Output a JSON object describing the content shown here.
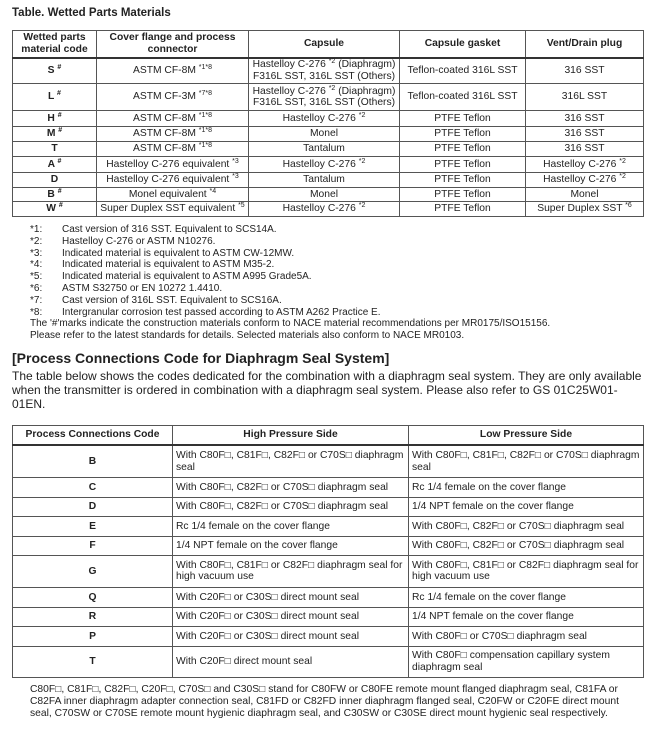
{
  "title": "Table. Wetted Parts Materials",
  "materials_table": {
    "headers": [
      "Wetted parts material code",
      "Cover flange and process connector",
      "Capsule",
      "Capsule gasket",
      "Vent/Drain plug"
    ],
    "rows": [
      {
        "code": "S",
        "code_sup": "#",
        "cover": "ASTM CF-8M",
        "cover_sup": "*1*8",
        "capsule": "Hastelloy C-276",
        "capsule_sup": "*2",
        "capsule_suffix": " (Diaphragm)",
        "capsule_line2": "F316L SST, 316L SST (Others)",
        "gasket": "Teflon-coated 316L SST",
        "plug": "316 SST",
        "plug_sup": ""
      },
      {
        "code": "L",
        "code_sup": "#",
        "cover": "ASTM CF-3M",
        "cover_sup": "*7*8",
        "capsule": "Hastelloy C-276",
        "capsule_sup": "*2",
        "capsule_suffix": " (Diaphragm)",
        "capsule_line2": "F316L SST, 316L SST (Others)",
        "gasket": "Teflon-coated 316L SST",
        "plug": "316L SST",
        "plug_sup": ""
      },
      {
        "code": "H",
        "code_sup": "#",
        "cover": "ASTM CF-8M",
        "cover_sup": "*1*8",
        "capsule": "Hastelloy C-276",
        "capsule_sup": "*2",
        "capsule_suffix": "",
        "capsule_line2": "",
        "gasket": "PTFE Teflon",
        "plug": "316 SST",
        "plug_sup": ""
      },
      {
        "code": "M",
        "code_sup": "#",
        "cover": "ASTM CF-8M",
        "cover_sup": "*1*8",
        "capsule": "Monel",
        "capsule_sup": "",
        "capsule_suffix": "",
        "capsule_line2": "",
        "gasket": "PTFE Teflon",
        "plug": "316 SST",
        "plug_sup": ""
      },
      {
        "code": "T",
        "code_sup": "",
        "cover": "ASTM CF-8M",
        "cover_sup": "*1*8",
        "capsule": "Tantalum",
        "capsule_sup": "",
        "capsule_suffix": "",
        "capsule_line2": "",
        "gasket": "PTFE Teflon",
        "plug": "316 SST",
        "plug_sup": ""
      },
      {
        "code": "A",
        "code_sup": "#",
        "cover": "Hastelloy C-276 equivalent",
        "cover_sup": "*3",
        "capsule": "Hastelloy C-276",
        "capsule_sup": "*2",
        "capsule_suffix": "",
        "capsule_line2": "",
        "gasket": "PTFE Teflon",
        "plug": "Hastelloy C-276",
        "plug_sup": "*2"
      },
      {
        "code": "D",
        "code_sup": "",
        "cover": "Hastelloy C-276 equivalent",
        "cover_sup": "*3",
        "capsule": "Tantalum",
        "capsule_sup": "",
        "capsule_suffix": "",
        "capsule_line2": "",
        "gasket": "PTFE Teflon",
        "plug": "Hastelloy C-276",
        "plug_sup": "*2"
      },
      {
        "code": "B",
        "code_sup": "#",
        "cover": "Monel equivalent",
        "cover_sup": "*4",
        "capsule": "Monel",
        "capsule_sup": "",
        "capsule_suffix": "",
        "capsule_line2": "",
        "gasket": "PTFE Teflon",
        "plug": "Monel",
        "plug_sup": ""
      },
      {
        "code": "W",
        "code_sup": "#",
        "cover": "Super Duplex SST equivalent",
        "cover_sup": "*5",
        "capsule": "Hastelloy C-276",
        "capsule_sup": "*2",
        "capsule_suffix": "",
        "capsule_line2": "",
        "gasket": "PTFE Teflon",
        "plug": "Super Duplex SST",
        "plug_sup": "*6"
      }
    ]
  },
  "footnotes": [
    {
      "label": "*1:",
      "text": "Cast version of 316 SST. Equivalent to SCS14A."
    },
    {
      "label": "*2:",
      "text": "Hastelloy C-276 or ASTM N10276."
    },
    {
      "label": "*3:",
      "text": "Indicated material is equivalent to ASTM CW-12MW."
    },
    {
      "label": "*4:",
      "text": "Indicated material is equivalent to ASTM M35-2."
    },
    {
      "label": "*5:",
      "text": "Indicated material is equivalent to ASTM A995 Grade5A."
    },
    {
      "label": "*6:",
      "text": "ASTM S32750 or EN 10272 1.4410."
    },
    {
      "label": "*7:",
      "text": "Cast version of 316L SST. Equivalent to SCS16A."
    },
    {
      "label": "*8:",
      "text": "Intergranular corrosion test passed according to ASTM A262 Practice E."
    }
  ],
  "nace_notes": [
    "The '#'marks indicate the construction materials conform to NACE material recommendations per MR0175/ISO15156.",
    "Please refer to the latest standards for details. Selected materials also conform to NACE MR0103."
  ],
  "section_heading": "[Process Connections Code for Diaphragm Seal System]",
  "section_intro": "The table below shows the codes dedicated for the combination with a diaphragm seal system. They are only available when the transmitter is ordered in combination with a diaphragm seal system. Please also refer to GS 01C25W01-01EN.",
  "connections_table": {
    "headers": [
      "Process Connections Code",
      "High Pressure Side",
      "Low Pressure Side"
    ],
    "rows": [
      {
        "code": "B",
        "high": "With C80F□, C81F□, C82F□ or C70S□ diaphragm seal",
        "low": "With C80F□, C81F□, C82F□ or C70S□ diaphragm seal"
      },
      {
        "code": "C",
        "high": "With C80F□, C82F□ or C70S□ diaphragm seal",
        "low": "Rc 1/4 female on the cover flange"
      },
      {
        "code": "D",
        "high": "With C80F□, C82F□ or C70S□ diaphragm seal",
        "low": "1/4 NPT female on the cover flange"
      },
      {
        "code": "E",
        "high": "Rc 1/4 female on the cover flange",
        "low": "With C80F□, C82F□ or C70S□ diaphragm seal"
      },
      {
        "code": "F",
        "high": "1/4 NPT female on the cover flange",
        "low": "With C80F□, C82F□ or C70S□ diaphragm seal"
      },
      {
        "code": "G",
        "high": "With C80F□, C81F□ or C82F□ diaphragm seal for high vacuum use",
        "low": "With C80F□, C81F□ or C82F□ diaphragm seal for high vacuum use"
      },
      {
        "code": "Q",
        "high": "With C20F□ or C30S□ direct mount seal",
        "low": "Rc 1/4 female on the cover flange"
      },
      {
        "code": "R",
        "high": "With C20F□ or C30S□ direct mount seal",
        "low": "1/4 NPT female on the cover flange"
      },
      {
        "code": "P",
        "high": "With C20F□ or C30S□ direct mount seal",
        "low": "With C80F□ or C70S□ diaphragm seal"
      },
      {
        "code": "T",
        "high": "With C20F□ direct mount seal",
        "low": "With C80F□ compensation capillary system diaphragm seal"
      }
    ]
  },
  "footer_note": "C80F□, C81F□, C82F□, C20F□, C70S□ and C30S□ stand for C80FW or C80FE remote mount flanged diaphragm seal, C81FA or C82FA inner diaphragm adapter connection seal, C81FD or C82FD inner diaphragm flanged seal, C20FW or C20FE direct mount seal, C70SW or C70SE remote mount hygienic diaphragm seal, and C30SW or C30SE direct mount hygienic seal respectively."
}
